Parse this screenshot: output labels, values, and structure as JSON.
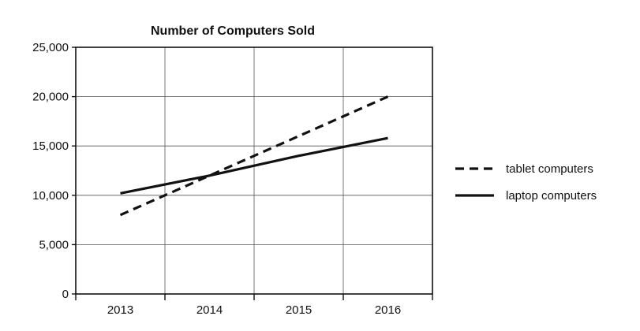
{
  "chart_data": {
    "type": "line",
    "title": "Number of Computers Sold",
    "xlabel": "",
    "ylabel": "",
    "categories": [
      "2013",
      "2014",
      "2015",
      "2016"
    ],
    "ylim": [
      0,
      25000
    ],
    "yticks": [
      0,
      5000,
      10000,
      15000,
      20000,
      25000
    ],
    "ytick_labels": [
      "0",
      "5,000",
      "10,000",
      "15,000",
      "20,000",
      "25,000"
    ],
    "grid": true,
    "legend_position": "right",
    "series": [
      {
        "name": "tablet computers",
        "style": "dashed",
        "color": "#111111",
        "values": [
          8000,
          12000,
          16000,
          20000
        ]
      },
      {
        "name": "laptop computers",
        "style": "solid",
        "color": "#111111",
        "values": [
          10200,
          12000,
          14000,
          15800
        ]
      }
    ]
  }
}
